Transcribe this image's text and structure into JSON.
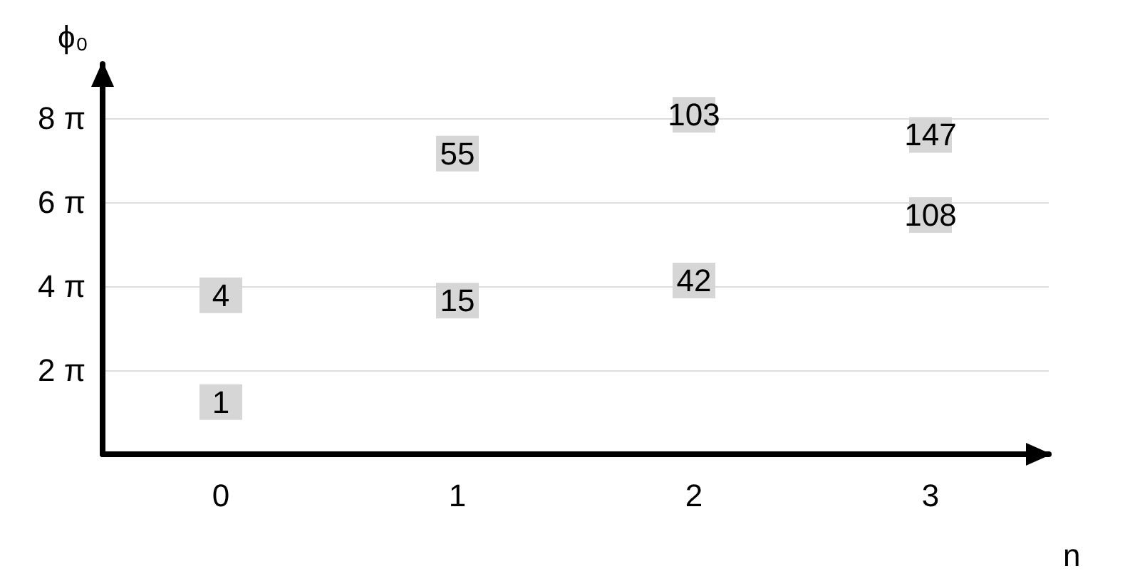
{
  "chart_data": {
    "type": "scatter",
    "xlabel": "n",
    "ylabel": "ϕ₀",
    "categories": [
      "0",
      "1",
      "2",
      "3"
    ],
    "series": [
      {
        "x": [
          "0",
          "0",
          "1",
          "1",
          "2",
          "2",
          "3",
          "3"
        ],
        "values": [
          3.9,
          11.9,
          11.5,
          22.5,
          13,
          25.4,
          17.9,
          23.9
        ],
        "color": "#d6d6d6"
      }
    ],
    "annotations": [
      {
        "text": "1",
        "x": "0",
        "y": 3.9
      },
      {
        "text": "4",
        "x": "0",
        "y": 11.9
      },
      {
        "text": "15",
        "x": "1",
        "y": 11.5
      },
      {
        "text": "55",
        "x": "1",
        "y": 22.5
      },
      {
        "text": "42",
        "x": "2",
        "y": 13
      },
      {
        "text": "103",
        "x": "2",
        "y": 25.4
      },
      {
        "text": "108",
        "x": "3",
        "y": 17.9
      },
      {
        "text": "147",
        "x": "3",
        "y": 23.9
      }
    ],
    "ylim": [
      0,
      29.2
    ],
    "yticks": [
      {
        "value": 6.283,
        "label": "2 π"
      },
      {
        "value": 12.566,
        "label": "4 π"
      },
      {
        "value": 18.85,
        "label": "6 π"
      },
      {
        "value": 25.133,
        "label": "8 π"
      }
    ],
    "grid": "y",
    "marker": "square"
  }
}
